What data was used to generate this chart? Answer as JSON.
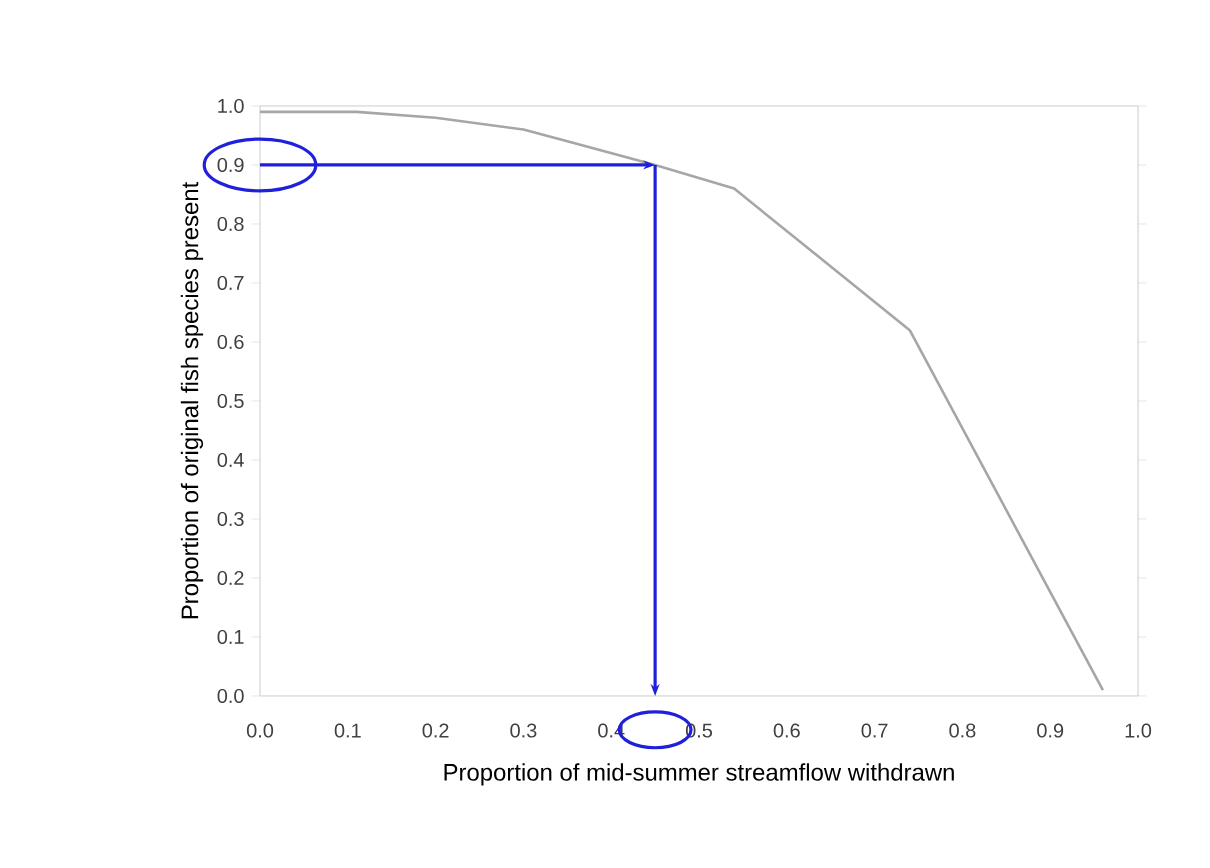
{
  "chart_data": {
    "type": "line",
    "xlabel": "Proportion of mid-summer streamflow withdrawn",
    "ylabel": "Proportion of original fish species present",
    "x": [
      0,
      0.11,
      0.2,
      0.3,
      0.35,
      0.45,
      0.54,
      0.74,
      0.96
    ],
    "series": [
      {
        "color": "#a6a6a6",
        "values": [
          0.99,
          0.99,
          0.98,
          0.96,
          0.94,
          0.9,
          0.86,
          0.62,
          0.01
        ]
      }
    ],
    "xlim": [
      0,
      1
    ],
    "ylim": [
      0,
      1
    ],
    "xticks": [
      {
        "value": 0,
        "label": "0.0"
      },
      0.1,
      0.2,
      0.3,
      0.4,
      0.5,
      0.6,
      0.7,
      0.8,
      0.9,
      {
        "value": 1,
        "label": "1.0"
      }
    ],
    "yticks": [
      {
        "value": 0,
        "label": "0.0"
      },
      0.1,
      0.2,
      0.3,
      0.4,
      0.5,
      0.6,
      0.7,
      0.8,
      0.9,
      {
        "value": 1,
        "label": "1.0"
      }
    ],
    "ref_lines": [
      {
        "axis": "y",
        "value": 0.9,
        "color": "#1f1fdc"
      },
      {
        "axis": "x",
        "value": 0.45,
        "color": "#1f1fdc"
      }
    ],
    "grid": false,
    "marker": "none",
    "line_style": "solid"
  }
}
